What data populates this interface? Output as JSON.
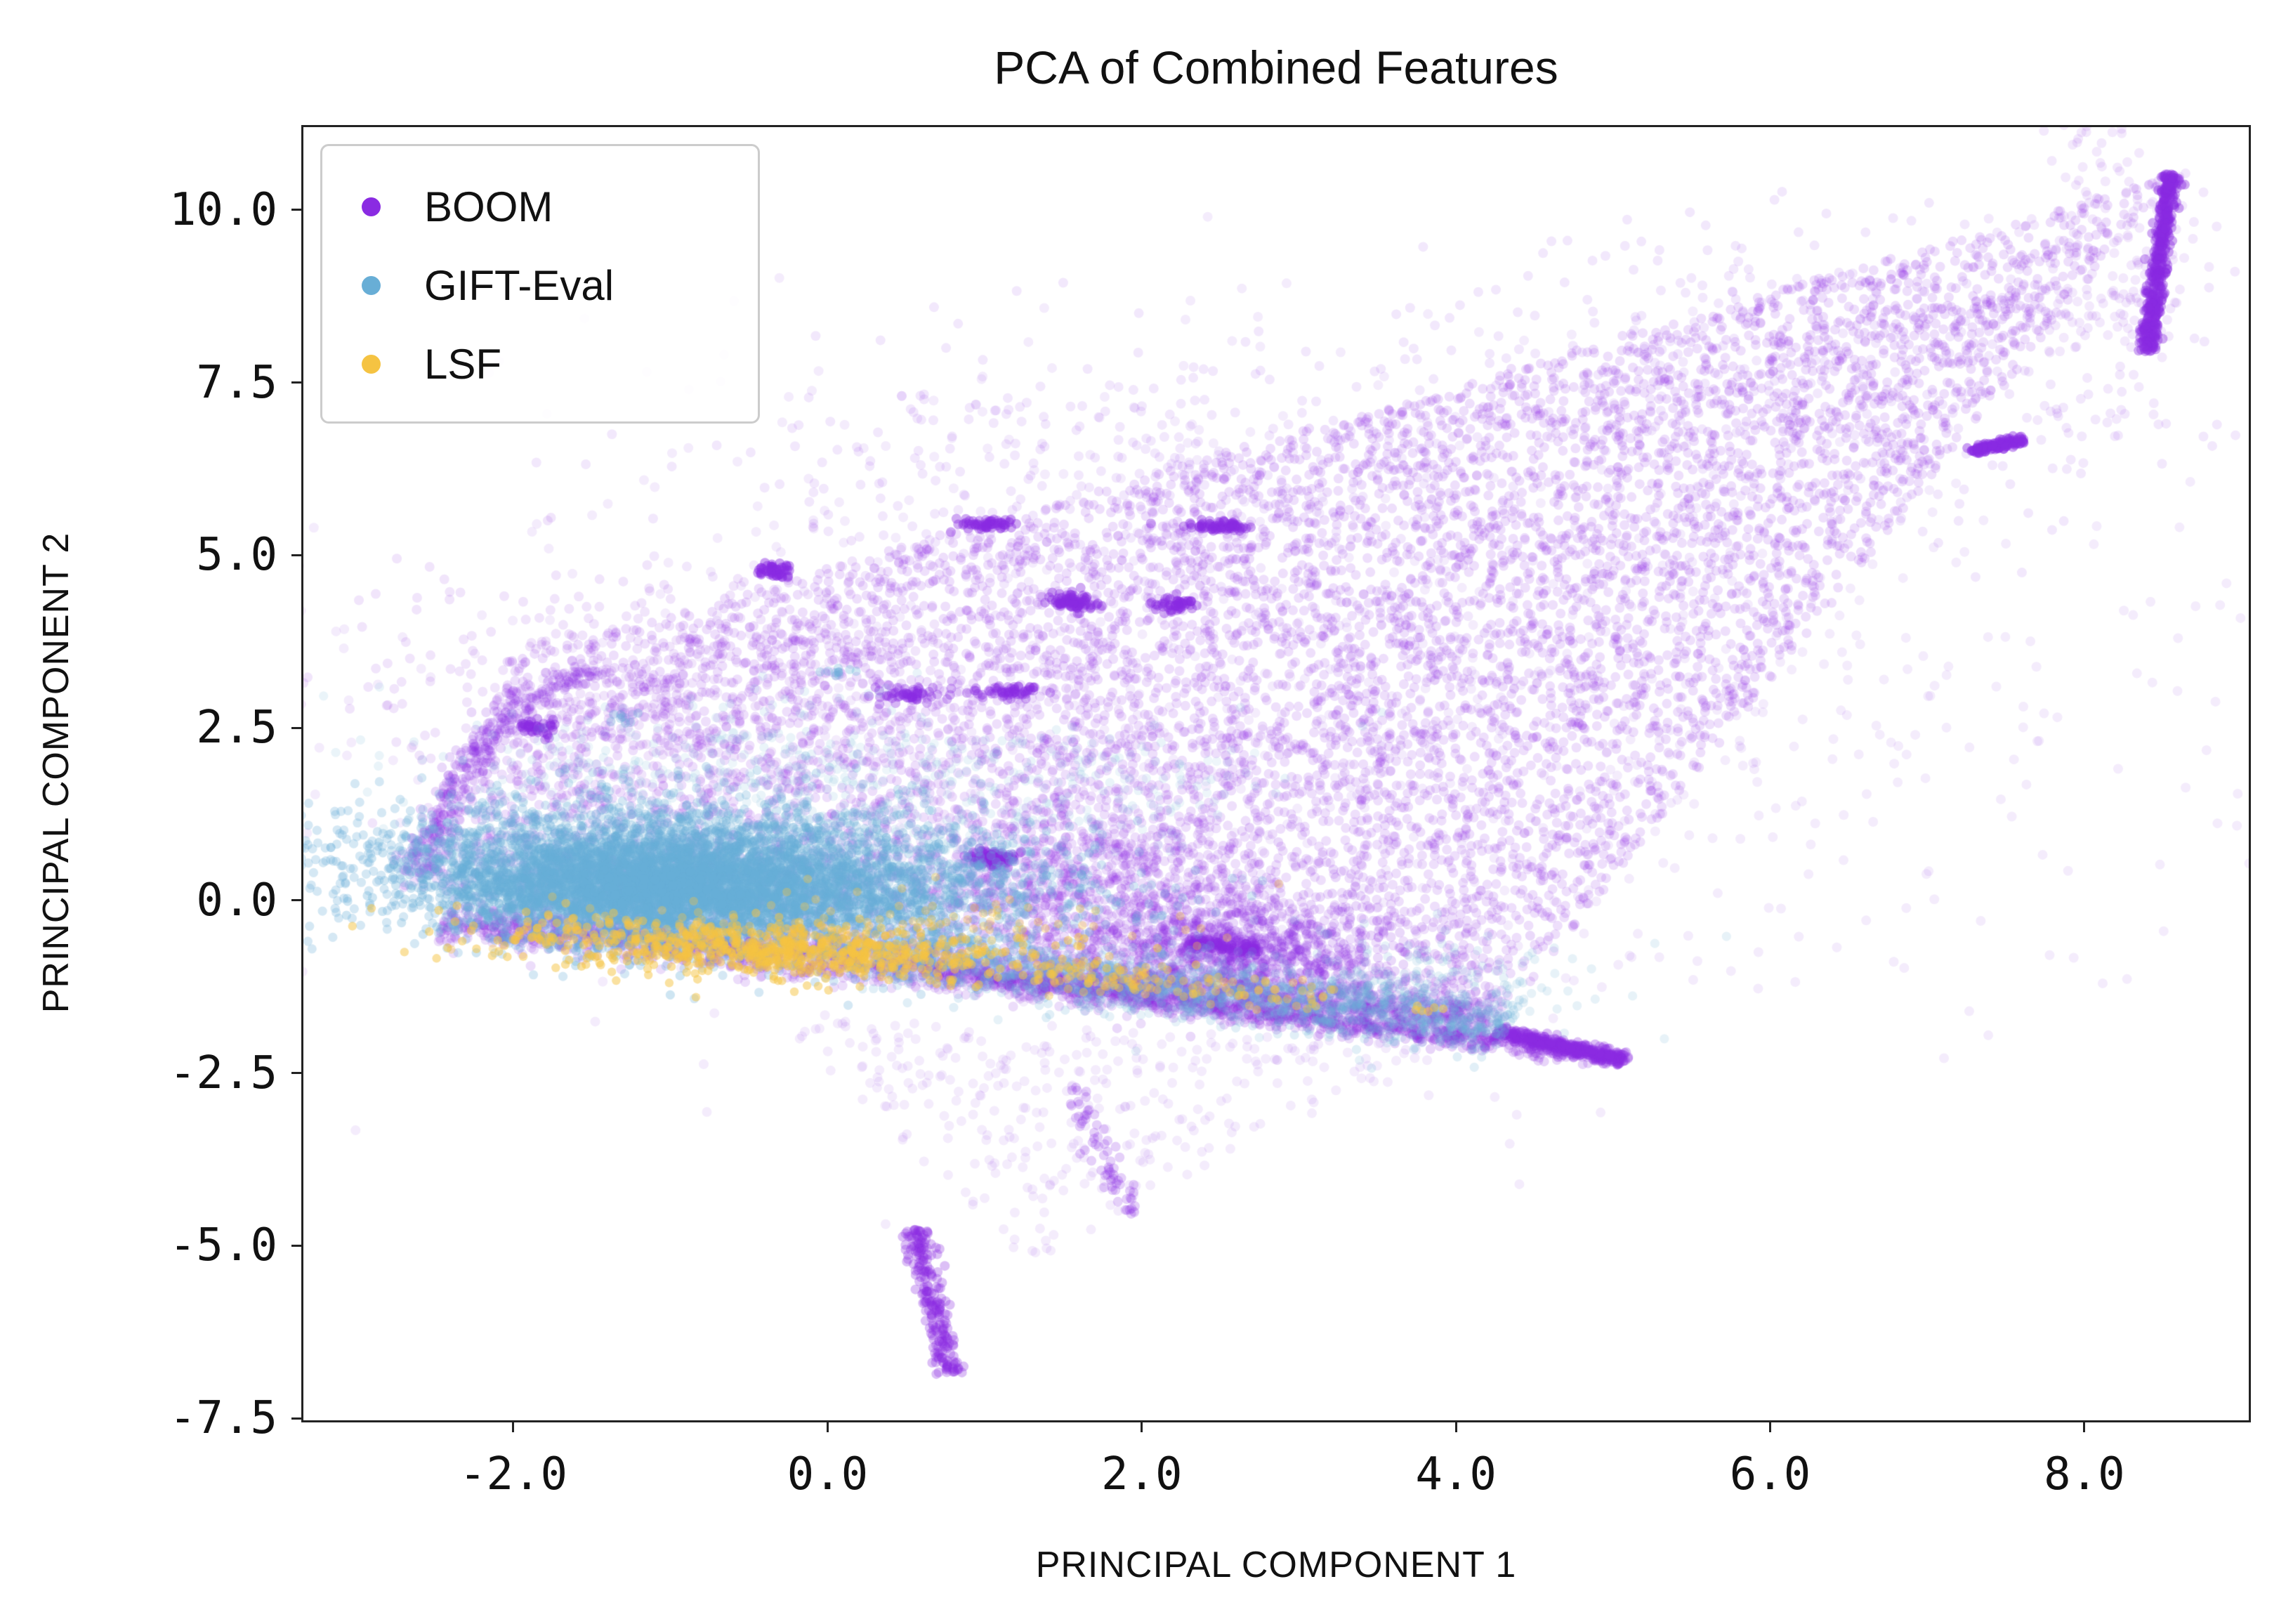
{
  "chart_data": {
    "type": "scatter",
    "title": "PCA of Combined Features",
    "xlabel": "PRINCIPAL COMPONENT 1",
    "ylabel": "PRINCIPAL COMPONENT 2",
    "xlim": [
      -3.35,
      9.06
    ],
    "ylim": [
      -7.56,
      11.23
    ],
    "xticks": [
      -2.0,
      0.0,
      2.0,
      4.0,
      6.0,
      8.0
    ],
    "yticks": [
      -7.5,
      -5.0,
      -2.5,
      0.0,
      2.5,
      5.0,
      7.5,
      10.0
    ],
    "grid": false,
    "spine_color": "#222222",
    "legend": {
      "position": "upper-left"
    },
    "series": [
      {
        "name": "BOOM",
        "color": "#8a2be2",
        "alpha": 0.15,
        "radius": 7,
        "seed": 11,
        "components": [
          {
            "kind": "quad",
            "pts": [
              [
                -2.75,
                0.2
              ],
              [
                -2.05,
                3.45
              ],
              [
                8.55,
                10.5
              ],
              [
                4.25,
                -1.85
              ]
            ],
            "n": 8200
          },
          {
            "kind": "gauss",
            "cx": 2.6,
            "cy": -0.75,
            "sx": 0.55,
            "sy": 0.4,
            "n": 900,
            "alpha": 0.18
          },
          {
            "kind": "gauss",
            "cx": 1.6,
            "cy": 0.3,
            "sx": 0.6,
            "sy": 0.5,
            "n": 600,
            "alpha": 0.15
          },
          {
            "kind": "gauss",
            "cx": -0.9,
            "cy": 3.2,
            "sx": 1.1,
            "sy": 0.8,
            "n": 480,
            "alpha": 0.12
          },
          {
            "kind": "gauss",
            "cx": 1.8,
            "cy": 6.2,
            "sx": 1.2,
            "sy": 1.0,
            "n": 330,
            "alpha": 0.11
          },
          {
            "kind": "gauss",
            "cx": 6.3,
            "cy": 7.6,
            "sx": 1.2,
            "sy": 1.2,
            "n": 380,
            "alpha": 0.11
          },
          {
            "kind": "gauss",
            "cx": 3.0,
            "cy": 2.8,
            "sx": 2.8,
            "sy": 2.4,
            "n": 1100,
            "alpha": 0.09
          },
          {
            "kind": "line",
            "x1": -2.45,
            "y1": -0.3,
            "x2": 4.2,
            "y2": -1.75,
            "sigma": 0.16,
            "n": 2200,
            "alpha": 0.16
          },
          {
            "kind": "line",
            "x1": 0.6,
            "y1": -1.0,
            "x2": 4.95,
            "y2": -2.28,
            "sigma": 0.07,
            "n": 700,
            "alpha": 0.2
          },
          {
            "kind": "line",
            "x1": 4.25,
            "y1": -1.9,
            "x2": 5.08,
            "y2": -2.32,
            "sigma": 0.045,
            "n": 420,
            "alpha": 0.3
          },
          {
            "kind": "line",
            "x1": 8.4,
            "y1": 7.95,
            "x2": 8.55,
            "y2": 10.52,
            "sigma": 0.03,
            "n": 480,
            "alpha": 0.4
          },
          {
            "kind": "gauss",
            "cx": 8.15,
            "cy": 9.2,
            "sx": 0.3,
            "sy": 1.0,
            "n": 200,
            "alpha": 0.1
          },
          {
            "kind": "line",
            "x1": 7.28,
            "y1": 6.5,
            "x2": 7.62,
            "y2": 6.68,
            "sigma": 0.03,
            "n": 110,
            "alpha": 0.45
          },
          {
            "kind": "line",
            "x1": 0.55,
            "y1": -4.75,
            "x2": 0.78,
            "y2": -6.85,
            "sigma": 0.045,
            "n": 230,
            "alpha": 0.3
          },
          {
            "kind": "tri",
            "pts": [
              [
                -0.4,
                -1.6
              ],
              [
                3.9,
                -2.1
              ],
              [
                1.3,
                -5.3
              ]
            ],
            "n": 320,
            "alpha": 0.09
          },
          {
            "kind": "line",
            "x1": 1.58,
            "y1": -2.7,
            "x2": 1.92,
            "y2": -4.55,
            "sigma": 0.05,
            "n": 70,
            "alpha": 0.22
          },
          {
            "kind": "line",
            "x1": -2.62,
            "y1": 0.4,
            "x2": -2.12,
            "y2": 2.6,
            "sigma": 0.07,
            "n": 240,
            "alpha": 0.18
          },
          {
            "kind": "line",
            "x1": -2.12,
            "y1": 2.6,
            "x2": -1.5,
            "y2": 3.35,
            "sigma": 0.07,
            "n": 90,
            "alpha": 0.18
          },
          {
            "kind": "gauss",
            "cx": 1.05,
            "cy": 0.62,
            "sx": 0.07,
            "sy": 0.07,
            "n": 90,
            "alpha": 0.4
          },
          {
            "kind": "gauss",
            "cx": 2.5,
            "cy": 5.42,
            "sx": 0.12,
            "sy": 0.04,
            "n": 70,
            "alpha": 0.4
          },
          {
            "kind": "gauss",
            "cx": 1.02,
            "cy": 5.45,
            "sx": 0.1,
            "sy": 0.04,
            "n": 60,
            "alpha": 0.4
          },
          {
            "kind": "gauss",
            "cx": 1.55,
            "cy": 4.32,
            "sx": 0.07,
            "sy": 0.07,
            "n": 80,
            "alpha": 0.4
          },
          {
            "kind": "gauss",
            "cx": -0.33,
            "cy": 4.78,
            "sx": 0.05,
            "sy": 0.05,
            "n": 50,
            "alpha": 0.45
          },
          {
            "kind": "gauss",
            "cx": 1.18,
            "cy": 3.02,
            "sx": 0.1,
            "sy": 0.05,
            "n": 60,
            "alpha": 0.35
          },
          {
            "kind": "gauss",
            "cx": 2.2,
            "cy": 4.28,
            "sx": 0.06,
            "sy": 0.06,
            "n": 50,
            "alpha": 0.4
          },
          {
            "kind": "gauss",
            "cx": 0.52,
            "cy": 2.98,
            "sx": 0.1,
            "sy": 0.05,
            "n": 55,
            "alpha": 0.35
          },
          {
            "kind": "line",
            "x1": 2.3,
            "y1": -0.6,
            "x2": 2.75,
            "y2": -0.72,
            "sigma": 0.05,
            "n": 120,
            "alpha": 0.3
          },
          {
            "kind": "gauss",
            "cx": -1.85,
            "cy": 2.5,
            "sx": 0.06,
            "sy": 0.06,
            "n": 40,
            "alpha": 0.4
          }
        ]
      },
      {
        "name": "GIFT-Eval",
        "color": "#68aed6",
        "alpha": 0.28,
        "radius": 6.6,
        "seed": 22,
        "components": [
          {
            "kind": "gauss",
            "cx": -0.75,
            "cy": 0.3,
            "sx": 1.05,
            "sy": 0.5,
            "rot": -8,
            "n": 5200
          },
          {
            "kind": "gauss",
            "cx": -1.15,
            "cy": 0.18,
            "sx": 0.6,
            "sy": 0.33,
            "n": 2600,
            "alpha": 0.32
          },
          {
            "kind": "line",
            "x1": 0.3,
            "y1": -0.75,
            "x2": 4.35,
            "y2": -1.8,
            "sigma": 0.22,
            "n": 1300,
            "alpha": 0.2
          },
          {
            "kind": "gauss",
            "cx": -0.2,
            "cy": 1.6,
            "sx": 1.3,
            "sy": 0.7,
            "n": 430,
            "alpha": 0.14
          },
          {
            "kind": "quad",
            "pts": [
              [
                -2.4,
                0.9
              ],
              [
                -2.0,
                2.6
              ],
              [
                2.8,
                2.2
              ],
              [
                2.2,
                0.6
              ]
            ],
            "n": 260,
            "alpha": 0.11
          },
          {
            "kind": "gauss",
            "cx": 3.4,
            "cy": -1.25,
            "sx": 0.8,
            "sy": 0.38,
            "n": 240,
            "alpha": 0.16
          },
          {
            "kind": "gauss",
            "cx": 0.05,
            "cy": 3.3,
            "sx": 0.05,
            "sy": 0.05,
            "n": 10,
            "alpha": 0.3
          },
          {
            "kind": "gauss",
            "cx": -1.3,
            "cy": 2.65,
            "sx": 0.05,
            "sy": 0.05,
            "n": 8,
            "alpha": 0.3
          }
        ]
      },
      {
        "name": "LSF",
        "color": "#f5c342",
        "alpha": 0.5,
        "radius": 6.2,
        "seed": 33,
        "components": [
          {
            "kind": "gauss",
            "cx": -0.35,
            "cy": -0.72,
            "sx": 0.85,
            "sy": 0.2,
            "rot": -6,
            "n": 760
          },
          {
            "kind": "line",
            "x1": 1.3,
            "y1": -1.05,
            "x2": 3.2,
            "y2": -1.45,
            "sigma": 0.12,
            "n": 130,
            "alpha": 0.4
          },
          {
            "kind": "gauss",
            "cx": 0.3,
            "cy": -0.4,
            "sx": 1.0,
            "sy": 0.28,
            "n": 140,
            "alpha": 0.35
          },
          {
            "kind": "gauss",
            "cx": 3.85,
            "cy": -1.55,
            "sx": 0.06,
            "sy": 0.06,
            "n": 6,
            "alpha": 0.5
          },
          {
            "kind": "gauss",
            "cx": -1.9,
            "cy": -0.45,
            "sx": 0.08,
            "sy": 0.08,
            "n": 8,
            "alpha": 0.5
          }
        ]
      }
    ]
  }
}
